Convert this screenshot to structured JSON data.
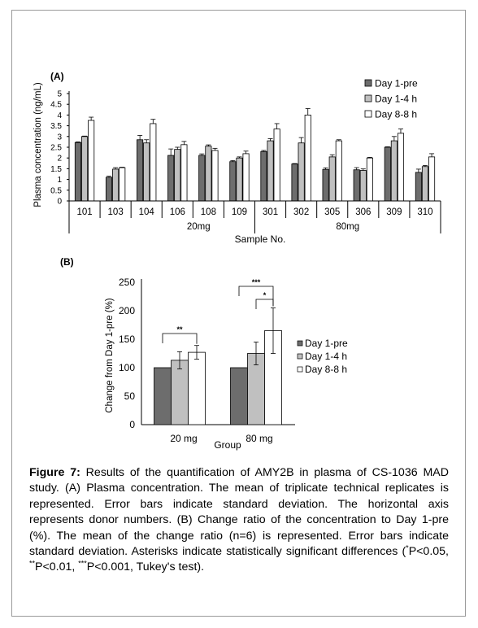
{
  "chart_data": [
    {
      "panel": "(A)",
      "type": "bar",
      "ylabel": "Plasma concentration (ng/mL)",
      "xlabel": "Sample No.",
      "ylim": [
        0,
        5
      ],
      "yticks": [
        "0",
        "0.5",
        "1",
        "1.5",
        "2",
        "2.5",
        "3",
        "3.5",
        "4",
        "4.5",
        "5"
      ],
      "categories": [
        "101",
        "103",
        "104",
        "106",
        "108",
        "109",
        "301",
        "302",
        "305",
        "306",
        "309",
        "310"
      ],
      "groups": [
        {
          "label": "20mg",
          "members": [
            "101",
            "103",
            "104",
            "106",
            "108",
            "109"
          ]
        },
        {
          "label": "80mg",
          "members": [
            "301",
            "302",
            "305",
            "306",
            "309",
            "310"
          ]
        }
      ],
      "series": [
        {
          "name": "Day 1-pre",
          "color": "#6d6d6d",
          "values": [
            2.72,
            1.1,
            2.85,
            2.12,
            2.12,
            1.83,
            2.3,
            1.72,
            1.47,
            1.45,
            2.5,
            1.33
          ],
          "errors": [
            0.03,
            0.05,
            0.2,
            0.3,
            0.07,
            0.05,
            0.05,
            0.02,
            0.07,
            0.1,
            0.02,
            0.15
          ]
        },
        {
          "name": "Day 1-4 h",
          "color": "#c0c0c0",
          "values": [
            3.0,
            1.48,
            2.7,
            2.4,
            2.55,
            2.0,
            2.8,
            2.7,
            2.05,
            1.42,
            2.8,
            1.6
          ],
          "errors": [
            0.02,
            0.07,
            0.15,
            0.1,
            0.06,
            0.05,
            0.1,
            0.25,
            0.1,
            0.07,
            0.2,
            0.05
          ]
        },
        {
          "name": "Day 8-8 h",
          "color": "#ffffff",
          "values": [
            3.75,
            1.55,
            3.6,
            2.62,
            2.35,
            2.2,
            3.35,
            4.0,
            2.8,
            2.0,
            3.15,
            2.05
          ],
          "errors": [
            0.15,
            0.02,
            0.2,
            0.15,
            0.1,
            0.12,
            0.25,
            0.3,
            0.05,
            0.03,
            0.2,
            0.15
          ]
        }
      ],
      "legend": [
        "Day 1-pre",
        "Day 1-4 h",
        "Day 8-8 h"
      ],
      "legend_position": "top-right"
    },
    {
      "panel": "(B)",
      "type": "bar",
      "ylabel": "Change from Day 1-pre (%)",
      "xlabel": "Group",
      "ylim": [
        0,
        250
      ],
      "yticks": [
        "0",
        "50",
        "100",
        "150",
        "200",
        "250"
      ],
      "categories": [
        "20 mg",
        "80 mg"
      ],
      "series": [
        {
          "name": "Day 1-pre",
          "color": "#6d6d6d",
          "values": [
            100,
            100
          ],
          "errors": [
            0,
            0
          ]
        },
        {
          "name": "Day 1-4 h",
          "color": "#c0c0c0",
          "values": [
            113,
            125
          ],
          "errors": [
            15,
            20
          ]
        },
        {
          "name": "Day 8-8 h",
          "color": "#ffffff",
          "values": [
            127,
            165
          ],
          "errors": [
            12,
            40
          ]
        }
      ],
      "significance": [
        {
          "group": "20 mg",
          "from": "Day 1-pre",
          "to": "Day 8-8 h",
          "label": "**"
        },
        {
          "group": "80 mg",
          "from": "Day 1-pre",
          "to": "Day 8-8 h",
          "label": "***"
        },
        {
          "group": "80 mg",
          "from": "Day 1-4 h",
          "to": "Day 8-8 h",
          "label": "*"
        }
      ],
      "legend": [
        "Day 1-pre",
        "Day 1-4 h",
        "Day 8-8 h"
      ],
      "legend_position": "right"
    }
  ],
  "caption": {
    "label": "Figure 7:",
    "text_1": " Results of the quantification of AMY2B in plasma of CS-1036 MAD study. (A) Plasma concentration. The mean of triplicate technical replicates is represented. Error bars indicate standard deviation. The horizontal axis represents donor numbers. (B) Change ratio of the concentration to Day 1-pre (%). The mean of the change ratio (n=6) is represented. Error bars indicate standard deviation. Asterisks indicate statistically significant differences (",
    "sup_1": "*",
    "text_2": "P<0.05, ",
    "sup_2": "**",
    "text_3": "P<0.01, ",
    "sup_3": "***",
    "text_4": "P<0.001, Tukey's test)."
  }
}
